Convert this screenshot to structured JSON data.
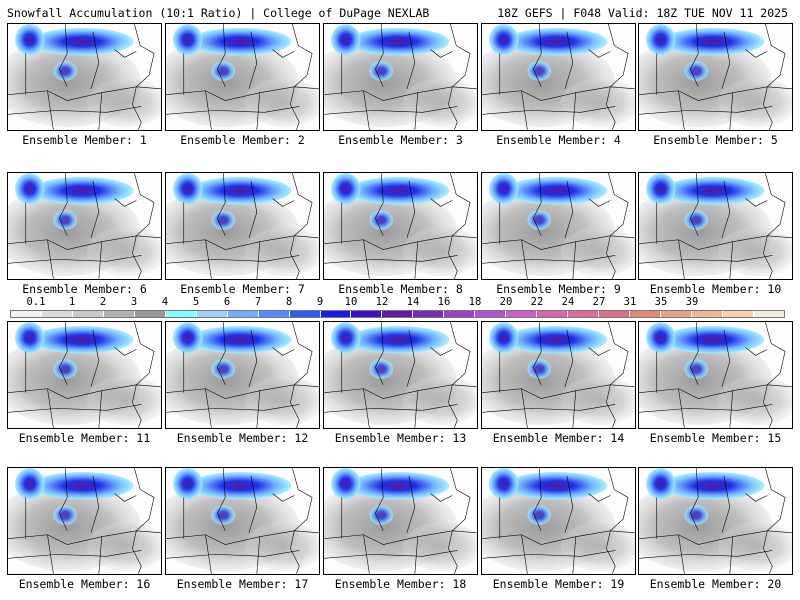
{
  "header": {
    "title_left": "Snowfall Accumulation (10:1 Ratio) | College of DuPage NEXLAB",
    "title_right": "18Z GEFS | F048 Valid: 18Z TUE NOV 11 2025"
  },
  "panels": [
    {
      "label": "Ensemble Member: 1"
    },
    {
      "label": "Ensemble Member: 2"
    },
    {
      "label": "Ensemble Member: 3"
    },
    {
      "label": "Ensemble Member: 4"
    },
    {
      "label": "Ensemble Member: 5"
    },
    {
      "label": "Ensemble Member: 6"
    },
    {
      "label": "Ensemble Member: 7"
    },
    {
      "label": "Ensemble Member: 8"
    },
    {
      "label": "Ensemble Member: 9"
    },
    {
      "label": "Ensemble Member: 10"
    },
    {
      "label": "Ensemble Member: 11"
    },
    {
      "label": "Ensemble Member: 12"
    },
    {
      "label": "Ensemble Member: 13"
    },
    {
      "label": "Ensemble Member: 14"
    },
    {
      "label": "Ensemble Member: 15"
    },
    {
      "label": "Ensemble Member: 16"
    },
    {
      "label": "Ensemble Member: 17"
    },
    {
      "label": "Ensemble Member: 18"
    },
    {
      "label": "Ensemble Member: 19"
    },
    {
      "label": "Ensemble Member: 20"
    }
  ],
  "colorbar": {
    "labels": [
      "0.1",
      "1",
      "2",
      "3",
      "4",
      "5",
      "6",
      "7",
      "8",
      "9",
      "10",
      "12",
      "14",
      "16",
      "18",
      "20",
      "22",
      "24",
      "27",
      "31",
      "35",
      "39"
    ],
    "colors": [
      "#f2f2f2",
      "#dcdcdc",
      "#c8c8c8",
      "#b0b0b0",
      "#969696",
      "#80ffff",
      "#9fd0ff",
      "#6fb0ff",
      "#4f8cff",
      "#2f5cf5",
      "#1818f0",
      "#3b10c8",
      "#6818a8",
      "#7a2ab8",
      "#9a40c8",
      "#b450d0",
      "#c860c8",
      "#d865b0",
      "#e06a9c",
      "#d8708a",
      "#e08878",
      "#e8a080",
      "#f0b890",
      "#f8d0b0",
      "#f2ece0"
    ]
  }
}
